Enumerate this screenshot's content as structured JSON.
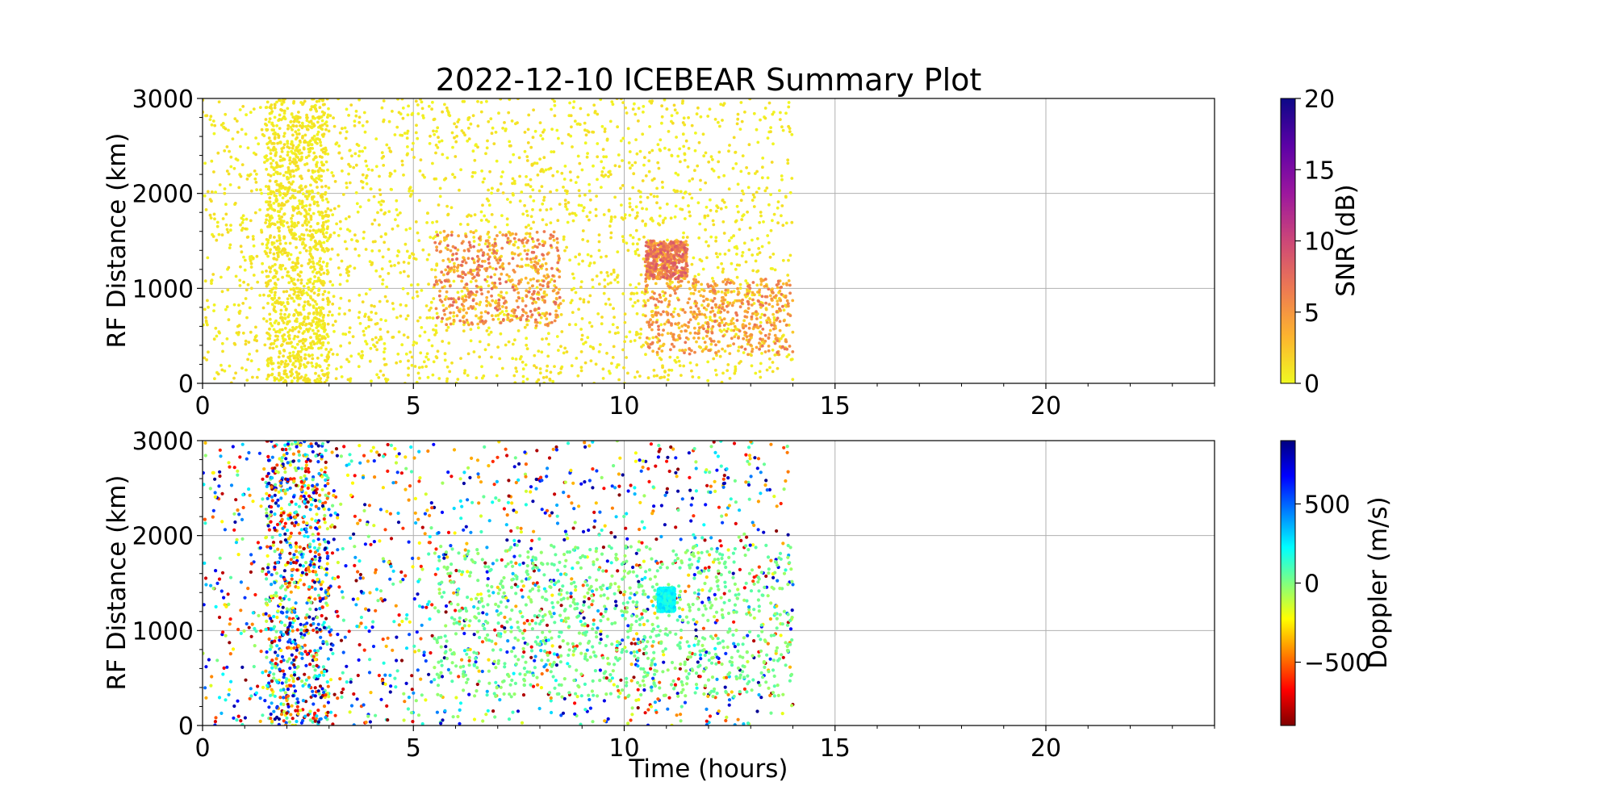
{
  "chart_data": [
    {
      "type": "scatter",
      "title": "2022-12-10 ICEBEAR Summary Plot",
      "xlabel": "",
      "ylabel": "RF Distance (km)",
      "xlim": [
        0,
        24
      ],
      "ylim": [
        0,
        3000
      ],
      "xticks": [
        "0",
        "5",
        "10",
        "15",
        "20"
      ],
      "yticks": [
        "0",
        "1000",
        "2000",
        "3000"
      ],
      "grid": true,
      "data_extent_hours": [
        0,
        14
      ],
      "colorbar": {
        "label": "SNR (dB)",
        "range": [
          0,
          20
        ],
        "ticks": [
          "0",
          "5",
          "10",
          "15",
          "20"
        ],
        "colormap": "plasma_r",
        "colors": [
          "#f0f921",
          "#fdb32f",
          "#ed7953",
          "#cc4778",
          "#9c179e",
          "#5c01a6",
          "#0d0887"
        ]
      },
      "clusters": [
        {
          "x_range": [
            0,
            14
          ],
          "y_range": [
            0,
            3000
          ],
          "value_range": [
            0,
            1.5
          ],
          "density": "high"
        },
        {
          "x_range": [
            1.5,
            3
          ],
          "y_range": [
            0,
            3000
          ],
          "value_range": [
            0,
            1.5
          ],
          "density": "very-high"
        },
        {
          "x_range": [
            5.5,
            8.5
          ],
          "y_range": [
            600,
            1600
          ],
          "value_range": [
            2,
            8
          ],
          "density": "medium"
        },
        {
          "x_range": [
            10.5,
            11.5
          ],
          "y_range": [
            1100,
            1500
          ],
          "value_range": [
            2,
            9
          ],
          "density": "medium"
        },
        {
          "x_range": [
            10.5,
            14
          ],
          "y_range": [
            300,
            1100
          ],
          "value_range": [
            2,
            7
          ],
          "density": "medium"
        }
      ]
    },
    {
      "type": "scatter",
      "title": "",
      "xlabel": "Time (hours)",
      "ylabel": "RF Distance (km)",
      "xlim": [
        0,
        24
      ],
      "ylim": [
        0,
        3000
      ],
      "xticks": [
        "0",
        "5",
        "10",
        "15",
        "20"
      ],
      "yticks": [
        "0",
        "1000",
        "2000",
        "3000"
      ],
      "grid": true,
      "data_extent_hours": [
        0,
        14
      ],
      "colorbar": {
        "label": "Doppler (m/s)",
        "range": [
          -900,
          900
        ],
        "ticks": [
          "−500",
          "0",
          "500"
        ],
        "tick_values": [
          -500,
          0,
          500
        ],
        "colormap": "jet_r",
        "colors": [
          "#800000",
          "#ff0000",
          "#ff8000",
          "#ffff00",
          "#80ff80",
          "#00ffff",
          "#0080ff",
          "#0000ff",
          "#000080"
        ]
      },
      "clusters": [
        {
          "x_range": [
            0,
            14
          ],
          "y_range": [
            0,
            3000
          ],
          "value_range": [
            -900,
            900
          ],
          "density": "medium"
        },
        {
          "x_range": [
            1.5,
            3
          ],
          "y_range": [
            0,
            3000
          ],
          "value_range": [
            -900,
            900
          ],
          "density": "high"
        },
        {
          "x_range": [
            5.5,
            14
          ],
          "y_range": [
            300,
            1900
          ],
          "value_range": [
            -60,
            80
          ],
          "density": "medium"
        },
        {
          "x_range": [
            10.8,
            11.2
          ],
          "y_range": [
            1200,
            1450
          ],
          "value_range": [
            150,
            300
          ],
          "density": "medium"
        }
      ]
    }
  ]
}
